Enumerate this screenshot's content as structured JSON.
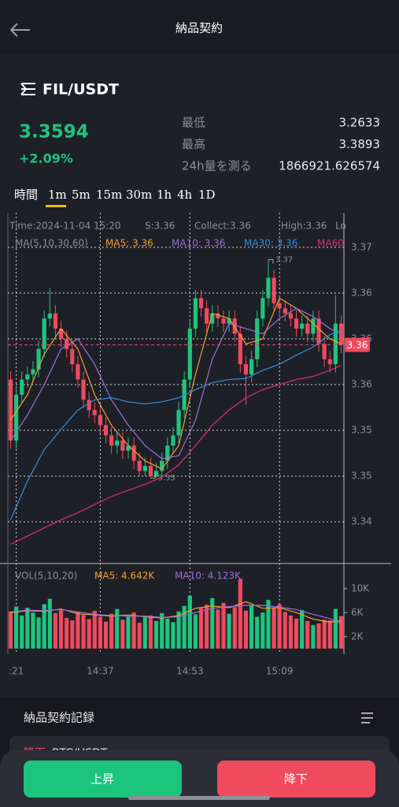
{
  "header": {
    "title": "納品契約"
  },
  "ticker": {
    "pair": "FIL/USDT",
    "price": "3.3594",
    "change": "+2.09%",
    "stats": [
      {
        "label": "最低",
        "value": "3.2633"
      },
      {
        "label": "最高",
        "value": "3.3893"
      },
      {
        "label": "24h量を測る",
        "value": "1866921.626574"
      }
    ]
  },
  "timeframes": {
    "label": "時間",
    "options": [
      "1m",
      "5m",
      "15m",
      "30m",
      "1h",
      "4h",
      "1D"
    ],
    "selected": "1m"
  },
  "chart_data": {
    "type": "candlestick",
    "info": [
      "Time:2024-11-04 15:20",
      "S:3.36",
      "Collect:3.36",
      "High:3.36",
      "Lo"
    ],
    "ma_title": "MA(5,10,30,60)",
    "up_color": "#1fc47e",
    "down_color": "#ef4a5f",
    "grid": true,
    "categories": [
      null,
      ":21",
      null,
      null,
      null,
      null,
      null,
      null,
      null,
      null,
      null,
      null,
      null,
      null,
      null,
      null,
      "14:37",
      null,
      null,
      null,
      null,
      null,
      null,
      null,
      null,
      null,
      null,
      null,
      null,
      null,
      null,
      null,
      "14:53",
      null,
      null,
      null,
      null,
      null,
      null,
      null,
      null,
      null,
      null,
      null,
      null,
      null,
      null,
      null,
      "15:09",
      null,
      null,
      null,
      null,
      null,
      null,
      null,
      null,
      null,
      null,
      null
    ],
    "open": [
      3.356,
      3.35,
      3.3545,
      3.356,
      3.3565,
      3.357,
      3.359,
      3.362,
      3.3625,
      3.361,
      3.36,
      3.359,
      3.3575,
      3.356,
      3.354,
      3.353,
      3.3525,
      3.3515,
      3.3505,
      3.3495,
      3.35,
      3.349,
      3.3495,
      3.348,
      3.347,
      3.3475,
      3.3465,
      3.347,
      3.348,
      3.3495,
      3.3505,
      3.353,
      3.356,
      3.361,
      3.364,
      3.363,
      3.3615,
      3.3625,
      3.362,
      3.3615,
      3.362,
      3.3605,
      3.3575,
      3.3565,
      3.358,
      3.362,
      3.364,
      3.366,
      3.3635,
      3.363,
      3.3625,
      3.362,
      3.361,
      3.3615,
      3.3605,
      3.362,
      3.3595,
      3.358,
      3.3575,
      3.3615
    ],
    "high": [
      3.3568,
      3.3553,
      3.3568,
      3.3573,
      3.3578,
      3.3598,
      3.3628,
      3.365,
      3.3633,
      3.3618,
      3.3608,
      3.3598,
      3.3583,
      3.3568,
      3.3548,
      3.3538,
      3.3533,
      3.3523,
      3.3513,
      3.3508,
      3.3508,
      3.3503,
      3.3503,
      3.3488,
      3.3483,
      3.3483,
      3.3478,
      3.3488,
      3.3503,
      3.3513,
      3.3538,
      3.3568,
      3.3618,
      3.3648,
      3.3648,
      3.3638,
      3.3633,
      3.3633,
      3.3628,
      3.3628,
      3.3628,
      3.3613,
      3.3583,
      3.3588,
      3.3628,
      3.3648,
      3.3678,
      3.3668,
      3.3643,
      3.3638,
      3.3633,
      3.3628,
      3.3623,
      3.3623,
      3.3628,
      3.3628,
      3.3603,
      3.3588,
      3.3643,
      3.3623
    ],
    "low": [
      3.3492,
      3.3492,
      3.3537,
      3.3552,
      3.3557,
      3.3562,
      3.3582,
      3.3612,
      3.3602,
      3.3592,
      3.3582,
      3.3567,
      3.3552,
      3.3532,
      3.3522,
      3.3517,
      3.3507,
      3.3497,
      3.3487,
      3.3487,
      3.3482,
      3.3482,
      3.3472,
      3.3465,
      3.3465,
      3.3463,
      3.3464,
      3.3466,
      3.3472,
      3.3487,
      3.3497,
      3.3522,
      3.3552,
      3.3602,
      3.3622,
      3.3607,
      3.3607,
      3.3612,
      3.3607,
      3.3607,
      3.3597,
      3.3567,
      3.3535,
      3.3557,
      3.3572,
      3.3612,
      3.3632,
      3.3627,
      3.3622,
      3.3617,
      3.3612,
      3.3602,
      3.3602,
      3.3597,
      3.3597,
      3.3587,
      3.3572,
      3.3567,
      3.3567,
      3.3586
    ],
    "close": [
      3.35,
      3.3545,
      3.356,
      3.3565,
      3.357,
      3.359,
      3.362,
      3.3625,
      3.361,
      3.36,
      3.359,
      3.3575,
      3.356,
      3.354,
      3.353,
      3.3525,
      3.3515,
      3.3505,
      3.3495,
      3.35,
      3.349,
      3.3495,
      3.348,
      3.347,
      3.3475,
      3.3465,
      3.347,
      3.348,
      3.3495,
      3.3505,
      3.353,
      3.356,
      3.361,
      3.364,
      3.363,
      3.3615,
      3.3625,
      3.362,
      3.3615,
      3.362,
      3.3605,
      3.3575,
      3.3565,
      3.358,
      3.362,
      3.364,
      3.366,
      3.3635,
      3.363,
      3.3625,
      3.362,
      3.361,
      3.3615,
      3.3605,
      3.362,
      3.3595,
      3.358,
      3.3575,
      3.3615,
      3.3594
    ],
    "ylim": [
      3.3379,
      3.3724
    ],
    "yticks": [
      {
        "value": 3.369,
        "label": "3.37"
      },
      {
        "value": 3.3645,
        "label": "3.36"
      },
      3.36,
      {
        "value": 3.3555,
        "label": "3.36"
      },
      {
        "value": 3.351,
        "label": "3.35"
      },
      {
        "value": 3.3465,
        "label": "3.35"
      },
      {
        "value": 3.342,
        "label": "3.34"
      }
    ],
    "series": [
      {
        "name": "MA5: 3.36",
        "color": "#f0a02e",
        "x": [
          0,
          3,
          6,
          9,
          12,
          15,
          18,
          21,
          24,
          27,
          30,
          33,
          36,
          39,
          42,
          45,
          48,
          51,
          54,
          57,
          59
        ],
        "values": [
          3.352,
          3.3545,
          3.3585,
          3.361,
          3.359,
          3.3545,
          3.3515,
          3.3495,
          3.348,
          3.3472,
          3.3495,
          3.3565,
          3.3625,
          3.362,
          3.3595,
          3.36,
          3.364,
          3.363,
          3.3615,
          3.36,
          3.3595
        ]
      },
      {
        "name": "MA10: 3.36",
        "color": "#9b6fd6",
        "x": [
          0,
          3,
          6,
          9,
          12,
          15,
          18,
          21,
          24,
          27,
          30,
          33,
          36,
          39,
          42,
          45,
          48,
          51,
          54,
          57,
          59
        ],
        "values": [
          3.35,
          3.3525,
          3.3555,
          3.359,
          3.36,
          3.3575,
          3.354,
          3.3515,
          3.3495,
          3.3482,
          3.3485,
          3.352,
          3.358,
          3.3615,
          3.361,
          3.3605,
          3.362,
          3.363,
          3.3622,
          3.361,
          3.3605
        ]
      },
      {
        "name": "MA30: 3.36",
        "color": "#2f8fe0",
        "x": [
          0,
          3,
          6,
          9,
          12,
          15,
          18,
          21,
          24,
          27,
          30,
          33,
          36,
          39,
          42,
          45,
          48,
          51,
          54,
          57,
          59
        ],
        "values": [
          3.3422,
          3.346,
          3.3491,
          3.3511,
          3.353,
          3.354,
          3.3542,
          3.3538,
          3.3536,
          3.3538,
          3.3542,
          3.355,
          3.3557,
          3.356,
          3.3561,
          3.3569,
          3.3575,
          3.3584,
          3.3592,
          3.3604,
          3.3609
        ]
      },
      {
        "name": "MA60",
        "color": "#e0306a",
        "x": [
          0,
          3,
          6,
          9,
          12,
          15,
          18,
          21,
          24,
          27,
          30,
          33,
          36,
          39,
          42,
          45,
          48,
          51,
          54,
          57,
          59
        ],
        "values": [
          3.3398,
          3.3406,
          3.3414,
          3.3422,
          3.3429,
          3.3437,
          3.3445,
          3.3451,
          3.3457,
          3.3464,
          3.3476,
          3.3495,
          3.3515,
          3.353,
          3.3542,
          3.355,
          3.3555,
          3.356,
          3.3563,
          3.3569,
          3.3574
        ]
      }
    ],
    "last_price": {
      "value": 3.3594,
      "label": "3.36"
    },
    "high_marker": {
      "x": 46,
      "value": 3.3678,
      "label": "3.37"
    },
    "low_marker": {
      "x": 25,
      "value": 3.3463,
      "label": "3.35"
    },
    "volume": {
      "title": "VOL(5,10,20)",
      "values": [
        6200,
        7000,
        5500,
        6800,
        6000,
        5200,
        7400,
        8300,
        5900,
        6400,
        5100,
        4700,
        6100,
        5600,
        4900,
        6300,
        5300,
        4500,
        5800,
        6600,
        4800,
        5400,
        6000,
        4300,
        5200,
        5500,
        4600,
        5900,
        5000,
        4400,
        6200,
        7100,
        8800,
        5700,
        6800,
        7300,
        8400,
        6500,
        7600,
        5800,
        6900,
        11600,
        6300,
        7200,
        5300,
        6000,
        8100,
        6700,
        7400,
        6100,
        5500,
        5000,
        6400,
        4600,
        3900,
        4200,
        4800,
        4700,
        6600,
        5400
      ],
      "ylim": [
        0,
        12200
      ],
      "yticks": [
        {
          "value": 10000,
          "label": "10K"
        },
        {
          "value": 6000,
          "label": "6K"
        },
        {
          "value": 2000,
          "label": "2K"
        }
      ],
      "series": [
        {
          "name": "MA5: 4.642K",
          "color": "#f0a02e",
          "x": [
            0,
            3,
            6,
            9,
            12,
            15,
            18,
            21,
            24,
            27,
            30,
            33,
            36,
            39,
            42,
            45,
            48,
            51,
            54,
            57,
            59
          ],
          "values": [
            6000,
            6300,
            6200,
            6600,
            5800,
            5600,
            5400,
            5600,
            5300,
            5100,
            5500,
            6700,
            7100,
            6800,
            7800,
            6700,
            6800,
            6000,
            4900,
            4400,
            4642
          ]
        },
        {
          "name": "MA10: 4.123K",
          "color": "#9b6fd6",
          "x": [
            0,
            3,
            6,
            9,
            12,
            15,
            18,
            21,
            24,
            27,
            30,
            33,
            36,
            39,
            42,
            45,
            48,
            51,
            54,
            57,
            59
          ],
          "values": [
            6100,
            6400,
            6300,
            6500,
            6100,
            5700,
            5500,
            5400,
            5400,
            5200,
            5300,
            6000,
            6700,
            7000,
            7200,
            7200,
            6900,
            6500,
            5700,
            5000,
            4123
          ]
        }
      ]
    }
  },
  "records": {
    "title": "納品契約記録",
    "row": {
      "side": "降下",
      "pair": "BTC/USDT"
    }
  },
  "buttons": {
    "up": "上昇",
    "down": "降下"
  }
}
